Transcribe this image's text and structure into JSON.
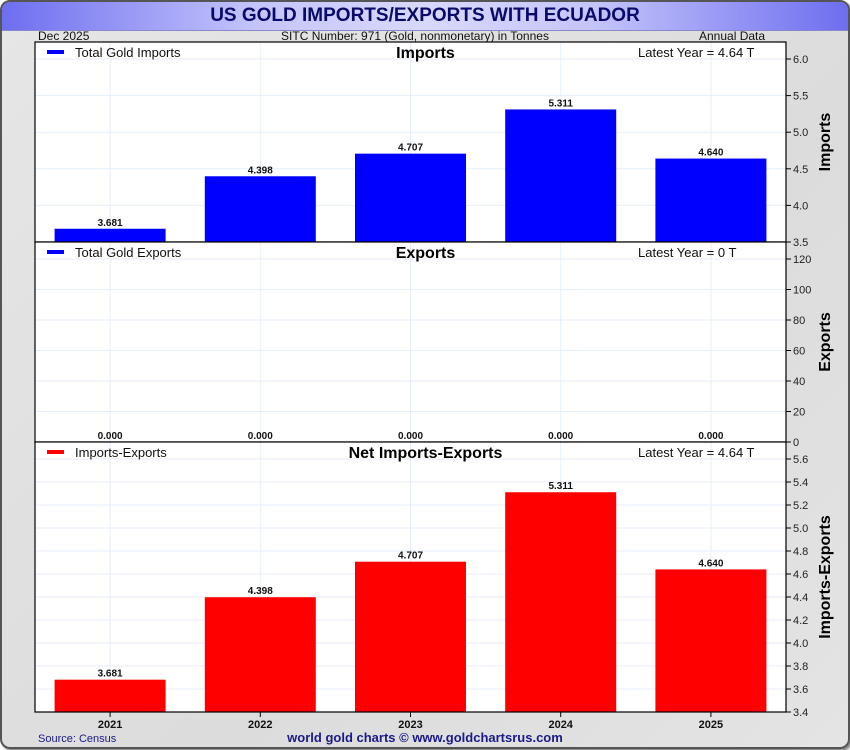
{
  "header": {
    "title": "US GOLD IMPORTS/EXPORTS WITH ECUADOR",
    "date": "Dec  2025",
    "subtitle": "SITC Number: 971 (Gold, nonmonetary) in Tonnes",
    "frequency": "Annual Data"
  },
  "footer": {
    "source": "Source: Census",
    "credit": "world gold charts © www.goldchartsrus.com"
  },
  "colors": {
    "imports": "#0000ff",
    "exports": "#0000ff",
    "net": "#ff0000",
    "grid": "#e4eef8",
    "title_text": "#0a0a6a"
  },
  "chart_data": [
    {
      "type": "bar",
      "title": "Imports",
      "legend": "Total Gold Imports",
      "legend_position": "top-left",
      "annotation": "Latest Year = 4.64 T",
      "ylabel": "Imports",
      "categories": [
        "2021",
        "2022",
        "2023",
        "2024",
        "2025"
      ],
      "values": [
        3.681,
        4.398,
        4.707,
        5.311,
        4.64
      ],
      "value_labels": [
        "3.681",
        "4.398",
        "4.707",
        "5.311",
        "4.640"
      ],
      "ylim": [
        3.5,
        6.2
      ],
      "yticks": [
        3.5,
        4.0,
        4.5,
        5.0,
        5.5,
        6.0
      ],
      "ytick_labels": [
        "3.5",
        "4.0",
        "4.5",
        "5.0",
        "5.5",
        "6.0"
      ],
      "grid": true,
      "color": "#0000ff"
    },
    {
      "type": "bar",
      "title": "Exports",
      "legend": "Total Gold Exports",
      "legend_position": "top-left",
      "annotation": "Latest Year = 0 T",
      "ylabel": "Exports",
      "categories": [
        "2021",
        "2022",
        "2023",
        "2024",
        "2025"
      ],
      "values": [
        0,
        0,
        0,
        0,
        0
      ],
      "value_labels": [
        "0.000",
        "0.000",
        "0.000",
        "0.000",
        "0.000"
      ],
      "ylim": [
        0,
        130
      ],
      "yticks": [
        0,
        20,
        40,
        60,
        80,
        100,
        120
      ],
      "ytick_labels": [
        "0",
        "20",
        "40",
        "60",
        "80",
        "100",
        "120"
      ],
      "grid": true,
      "color": "#0000ff"
    },
    {
      "type": "bar",
      "title": "Net Imports-Exports",
      "legend": "Imports-Exports",
      "legend_position": "top-left",
      "annotation": "Latest Year = 4.64 T",
      "ylabel": "Imports-Exports",
      "categories": [
        "2021",
        "2022",
        "2023",
        "2024",
        "2025"
      ],
      "values": [
        3.681,
        4.398,
        4.707,
        5.311,
        4.64
      ],
      "value_labels": [
        "3.681",
        "4.398",
        "4.707",
        "5.311",
        "4.640"
      ],
      "ylim": [
        3.4,
        5.7
      ],
      "yticks": [
        3.4,
        3.6,
        3.8,
        4.0,
        4.2,
        4.4,
        4.6,
        4.8,
        5.0,
        5.2,
        5.4,
        5.6
      ],
      "ytick_labels": [
        "3.4",
        "3.6",
        "3.8",
        "4.0",
        "4.2",
        "4.4",
        "4.6",
        "4.8",
        "5.0",
        "5.2",
        "5.4",
        "5.6"
      ],
      "xlabel_ticks": [
        "2021",
        "2022",
        "2023",
        "2024",
        "2025"
      ],
      "grid": true,
      "color": "#ff0000"
    }
  ]
}
